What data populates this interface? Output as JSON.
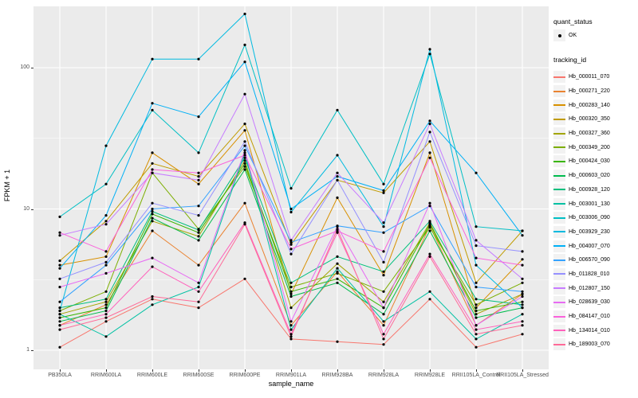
{
  "axes": {
    "x_label": "sample_name",
    "y_label": "FPKM + 1",
    "y_tick_labels": [
      "100",
      "10",
      "1"
    ]
  },
  "legend": {
    "quant_status_title": "quant_status",
    "quant_status_items": [
      {
        "label": "OK",
        "marker": "black-point"
      }
    ],
    "tracking_id_title": "tracking_id"
  },
  "colors": {
    "panel_background": "#EBEBEB",
    "gridline": "#FFFFFF",
    "axis_text": "#4D4D4D",
    "legend_key_background": "#F2F2F2",
    "point": "#000000"
  },
  "chart_data": {
    "type": "line",
    "title": "",
    "xlabel": "sample_name",
    "ylabel": "FPKM + 1",
    "y_scale": "log10",
    "ylim": [
      1,
      300
    ],
    "y_major_ticks": [
      1,
      10,
      100
    ],
    "y_minor_gridlines": [
      3.1623,
      31.623
    ],
    "grid": true,
    "legend_position": "right",
    "point_marker": "black point (quant_status = OK) at every sample for every series",
    "categories": [
      "PB350LA",
      "RRIM600LA",
      "RRIM600LE",
      "RRIM600SE",
      "RRIM600PE",
      "RRIM901LA",
      "RRIM928BA",
      "RRIM928LA",
      "RRIM928LE",
      "RRII105LA_Control",
      "RRII105LA_Stressed"
    ],
    "series": [
      {
        "name": "Hb_000011_070",
        "color": "#F8766D",
        "values": [
          1.05,
          1.6,
          2.3,
          2.0,
          3.2,
          1.2,
          1.15,
          1.1,
          2.3,
          1.05,
          1.3
        ]
      },
      {
        "name": "Hb_000271_220",
        "color": "#EA8331",
        "values": [
          1.5,
          2.1,
          7.0,
          4.0,
          11,
          1.5,
          3.6,
          1.5,
          7.6,
          1.5,
          2.5
        ]
      },
      {
        "name": "Hb_000283_140",
        "color": "#D89000",
        "values": [
          4.0,
          4.6,
          25,
          15,
          36,
          2.5,
          12,
          3.4,
          25,
          2.0,
          4.4
        ]
      },
      {
        "name": "Hb_000320_350",
        "color": "#C09B00",
        "values": [
          4.3,
          8.2,
          21,
          17,
          40,
          5.6,
          16,
          13,
          30,
          3.0,
          7.0
        ]
      },
      {
        "name": "Hb_000327_360",
        "color": "#A3A500",
        "values": [
          1.8,
          2.2,
          8.2,
          6.4,
          22,
          2.0,
          4.1,
          2.2,
          8.0,
          1.8,
          2.5
        ]
      },
      {
        "name": "Hb_000349_200",
        "color": "#7CAE00",
        "values": [
          1.9,
          2.6,
          18,
          7.2,
          20,
          2.8,
          3.5,
          2.6,
          7.4,
          2.1,
          3.0
        ]
      },
      {
        "name": "Hb_000424_030",
        "color": "#39B600",
        "values": [
          1.7,
          2.0,
          9.2,
          6.8,
          21,
          2.6,
          3.2,
          2.0,
          7.8,
          1.9,
          2.2
        ]
      },
      {
        "name": "Hb_000603_020",
        "color": "#00BB4E",
        "values": [
          1.6,
          1.9,
          8.6,
          6.0,
          19,
          2.4,
          3.0,
          1.8,
          7.0,
          1.7,
          2.0
        ]
      },
      {
        "name": "Hb_000928_120",
        "color": "#00BF7D",
        "values": [
          2.0,
          2.3,
          9.6,
          7.1,
          23,
          3.0,
          4.6,
          3.6,
          8.2,
          2.3,
          2.1
        ]
      },
      {
        "name": "Hb_003001_130",
        "color": "#00C1A3",
        "values": [
          1.8,
          1.25,
          2.1,
          2.8,
          25,
          1.4,
          3.8,
          1.6,
          2.6,
          1.2,
          1.8
        ]
      },
      {
        "name": "Hb_003006_090",
        "color": "#00BFC4",
        "values": [
          8.8,
          15,
          50,
          25,
          145,
          14,
          50,
          15,
          125,
          7.5,
          7.0
        ]
      },
      {
        "name": "Hb_003929_230",
        "color": "#00BAE0",
        "values": [
          1.9,
          28,
          115,
          115,
          240,
          9.5,
          24,
          7.5,
          135,
          4.0,
          2.0
        ]
      },
      {
        "name": "Hb_004007_070",
        "color": "#00B0F6",
        "values": [
          3.8,
          9.0,
          56,
          45,
          110,
          10,
          17,
          13.5,
          42,
          18,
          6.5
        ]
      },
      {
        "name": "Hb_006570_090",
        "color": "#35A2FF",
        "values": [
          2.2,
          4.0,
          10,
          10.5,
          28,
          5.8,
          7.6,
          6.8,
          10.5,
          2.8,
          2.6
        ]
      },
      {
        "name": "Hb_011828_010",
        "color": "#9590FF",
        "values": [
          3.2,
          4.2,
          11,
          9.0,
          30,
          4.8,
          16,
          4.2,
          35,
          5.5,
          5.0
        ]
      },
      {
        "name": "Hb_012807_150",
        "color": "#C77CFF",
        "values": [
          6.5,
          7.8,
          18,
          16,
          65,
          6.0,
          18,
          8.0,
          40,
          6.0,
          3.2
        ]
      },
      {
        "name": "Hb_028639_030",
        "color": "#E76BF3",
        "values": [
          2.8,
          3.5,
          4.5,
          3.0,
          26,
          1.6,
          7.5,
          2.0,
          11,
          1.5,
          2.4
        ]
      },
      {
        "name": "Hb_084147_010",
        "color": "#FA62DB",
        "values": [
          6.8,
          5.0,
          19,
          18,
          24,
          5.2,
          7.0,
          5.0,
          23,
          4.5,
          4.0
        ]
      },
      {
        "name": "Hb_134014_010",
        "color": "#FF62BC",
        "values": [
          1.5,
          1.8,
          3.9,
          2.6,
          8.0,
          1.3,
          6.8,
          1.3,
          4.8,
          1.4,
          1.6
        ]
      },
      {
        "name": "Hb_189003_070",
        "color": "#FF6A98",
        "values": [
          1.4,
          1.7,
          2.4,
          2.2,
          7.8,
          1.25,
          7.2,
          1.2,
          4.6,
          1.3,
          1.5
        ]
      }
    ]
  }
}
